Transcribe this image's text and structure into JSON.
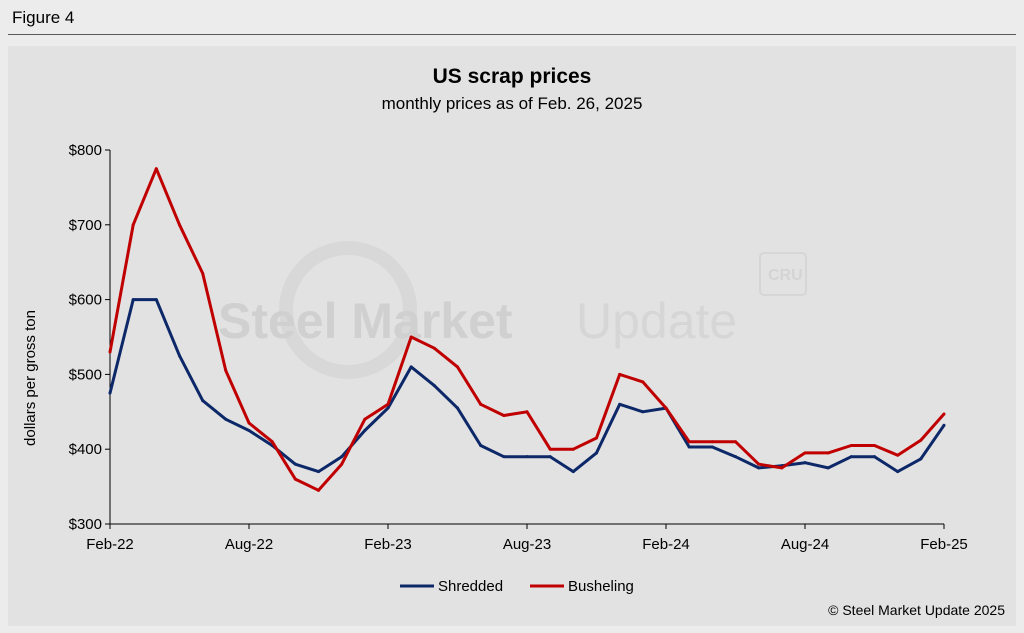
{
  "figure_label": "Figure 4",
  "copyright": "© Steel Market Update 2025",
  "watermark": {
    "brand_bold": "Steel Market",
    "brand_light": "Update",
    "badge": "CRU"
  },
  "colors": {
    "shredded": "#0d2868",
    "busheling": "#c00000",
    "axis": "#000000",
    "background": "#e2e2e2"
  },
  "chart_data": {
    "type": "line",
    "title": "US scrap prices",
    "subtitle": "monthly prices as of Feb. 26, 2025",
    "xlabel": "",
    "ylabel": "dollars per  gross ton",
    "ylim": [
      300,
      800
    ],
    "yticks": [
      300,
      400,
      500,
      600,
      700,
      800
    ],
    "ytick_labels": [
      "$300",
      "$400",
      "$500",
      "$600",
      "$700",
      "$800"
    ],
    "grid": false,
    "legend_position": "bottom-center",
    "categories": [
      "Feb-22",
      "Mar-22",
      "Apr-22",
      "May-22",
      "Jun-22",
      "Jul-22",
      "Aug-22",
      "Sep-22",
      "Oct-22",
      "Nov-22",
      "Dec-22",
      "Jan-23",
      "Feb-23",
      "Mar-23",
      "Apr-23",
      "May-23",
      "Jun-23",
      "Jul-23",
      "Aug-23",
      "Sep-23",
      "Oct-23",
      "Nov-23",
      "Dec-23",
      "Jan-24",
      "Feb-24",
      "Mar-24",
      "Apr-24",
      "May-24",
      "Jun-24",
      "Jul-24",
      "Aug-24",
      "Sep-24",
      "Oct-24",
      "Nov-24",
      "Dec-24",
      "Jan-25",
      "Feb-25"
    ],
    "xtick_indices": [
      0,
      6,
      12,
      18,
      24,
      30,
      36
    ],
    "xtick_labels": [
      "Feb-22",
      "Aug-22",
      "Feb-23",
      "Aug-23",
      "Feb-24",
      "Aug-24",
      "Feb-25"
    ],
    "series": [
      {
        "name": "Shredded",
        "color_key": "shredded",
        "values": [
          475,
          600,
          600,
          525,
          465,
          440,
          425,
          405,
          380,
          370,
          390,
          425,
          455,
          510,
          485,
          455,
          405,
          390,
          390,
          390,
          370,
          395,
          460,
          450,
          455,
          403,
          403,
          390,
          375,
          378,
          382,
          375,
          390,
          390,
          370,
          387,
          432
        ]
      },
      {
        "name": "Busheling",
        "color_key": "busheling",
        "values": [
          530,
          700,
          775,
          700,
          635,
          505,
          435,
          410,
          360,
          345,
          380,
          440,
          460,
          550,
          535,
          510,
          460,
          445,
          450,
          400,
          400,
          415,
          500,
          490,
          455,
          410,
          410,
          410,
          380,
          375,
          395,
          395,
          405,
          405,
          392,
          412,
          447
        ]
      }
    ]
  }
}
